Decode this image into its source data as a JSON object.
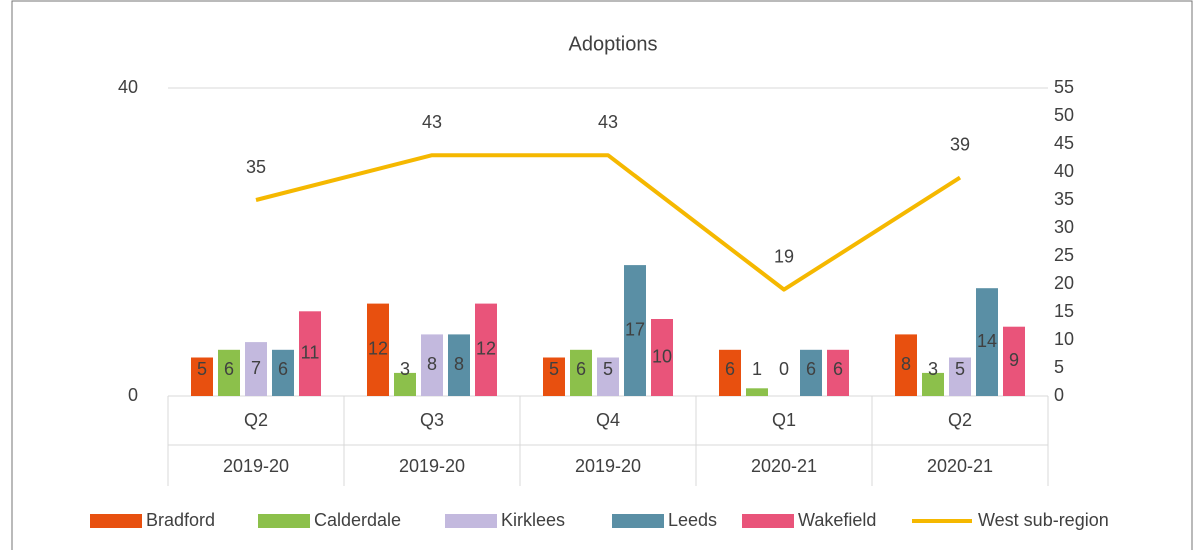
{
  "chart_data": {
    "type": "bar_line",
    "title": "Adoptions",
    "categories": [
      "Q2",
      "Q3",
      "Q4",
      "Q1",
      "Q2"
    ],
    "periods": [
      "2019-20",
      "2019-20",
      "2019-20",
      "2020-21",
      "2020-21"
    ],
    "series": [
      {
        "name": "Bradford",
        "color": "#e8500f",
        "values": [
          5,
          12,
          5,
          6,
          8
        ]
      },
      {
        "name": "Calderdale",
        "color": "#8cc04b",
        "values": [
          6,
          3,
          6,
          1,
          3
        ]
      },
      {
        "name": "Kirklees",
        "color": "#c3b9de",
        "values": [
          7,
          8,
          5,
          0,
          5
        ]
      },
      {
        "name": "Leeds",
        "color": "#5a8fa5",
        "values": [
          6,
          8,
          17,
          6,
          14
        ]
      },
      {
        "name": "Wakefield",
        "color": "#e9547a",
        "values": [
          11,
          12,
          10,
          6,
          9
        ]
      },
      {
        "name": "West sub-region",
        "color": "#f5b800",
        "axis": "y2",
        "values": [
          35,
          43,
          43,
          19,
          39
        ]
      }
    ],
    "ylim": [
      0,
      40
    ],
    "yticks": [
      0,
      40
    ],
    "y2lim": [
      0,
      55
    ],
    "y2ticks": [
      0,
      5,
      10,
      15,
      20,
      25,
      30,
      35,
      40,
      45,
      50,
      55
    ],
    "grid": true
  }
}
